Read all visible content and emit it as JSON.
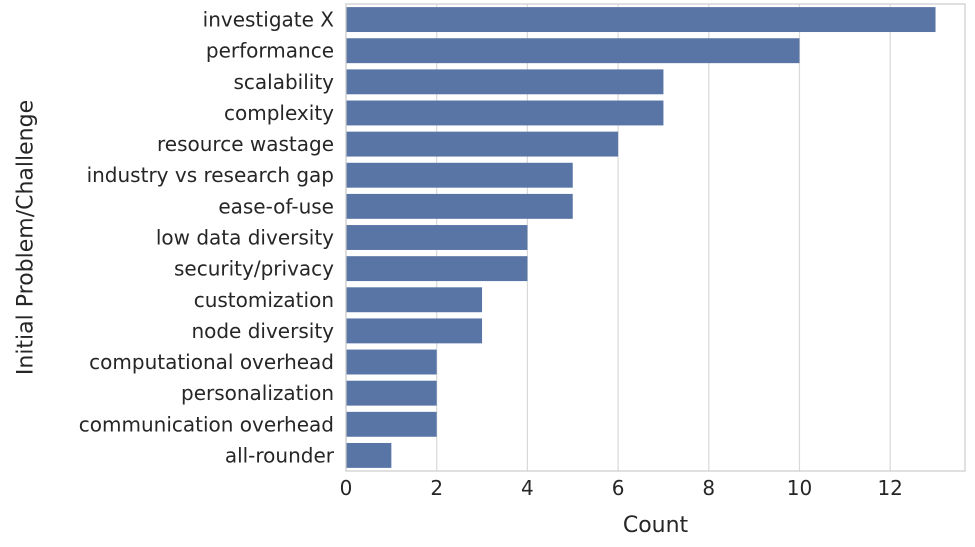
{
  "chart_data": {
    "type": "bar",
    "orientation": "horizontal",
    "title": "",
    "xlabel": "Count",
    "ylabel": "Initial Problem/Challenge",
    "categories": [
      "investigate X",
      "performance",
      "scalability",
      "complexity",
      "resource wastage",
      "industry vs research gap",
      "ease-of-use",
      "low data diversity",
      "security/privacy",
      "customization",
      "node diversity",
      "computational overhead",
      "personalization",
      "communication overhead",
      "all-rounder"
    ],
    "values": [
      13,
      10,
      7,
      7,
      6,
      5,
      5,
      4,
      4,
      3,
      3,
      2,
      2,
      2,
      1
    ],
    "xlim": [
      0,
      13.65
    ],
    "xticks": [
      0,
      2,
      4,
      6,
      8,
      10,
      12
    ],
    "grid": "vertical",
    "legend": "none",
    "bar_color": "#5875a6"
  }
}
